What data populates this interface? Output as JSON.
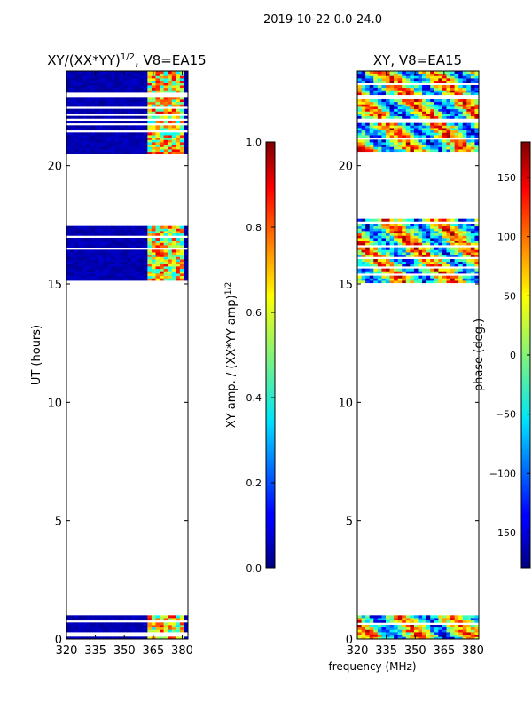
{
  "suptitle": "2019-10-22 0.0-24.0",
  "chart_data": [
    {
      "type": "heatmap",
      "title_prefix": "XY/(XX*YY)",
      "title_sup": "1/2",
      "title_suffix": ", V8=EA15",
      "xlabel": "",
      "ylabel": "UT (hours)",
      "xlim": [
        320,
        383
      ],
      "ylim": [
        0,
        24
      ],
      "xticks": [
        320,
        335,
        350,
        365,
        380
      ],
      "yticks": [
        0,
        5,
        10,
        15,
        20
      ],
      "data_bands_ut": [
        [
          0.0,
          0.95
        ],
        [
          15.05,
          17.75
        ],
        [
          20.5,
          24.0
        ]
      ],
      "colorbar": {
        "label_prefix": "XY amp. / (XX*YY amp)",
        "label_sup": "1/2",
        "range": [
          0.0,
          1.0
        ],
        "ticks": [
          0.0,
          0.2,
          0.4,
          0.6,
          0.8,
          1.0
        ],
        "tick_labels": [
          "0.0",
          "0.2",
          "0.4",
          "0.6",
          "0.8",
          "1.0"
        ]
      }
    },
    {
      "type": "heatmap",
      "title_prefix": "XY, V8=EA15",
      "title_sup": "",
      "title_suffix": "",
      "xlabel": "frequency (MHz)",
      "ylabel": "",
      "xlim": [
        320,
        383
      ],
      "ylim": [
        0,
        24
      ],
      "xticks": [
        320,
        335,
        350,
        365,
        380
      ],
      "yticks": [
        0,
        5,
        10,
        15,
        20
      ],
      "data_bands_ut": [
        [
          0.0,
          0.95
        ],
        [
          15.05,
          17.75
        ],
        [
          20.5,
          24.0
        ]
      ],
      "colorbar": {
        "label_prefix": "phase (deg.)",
        "label_sup": "",
        "range": [
          -180,
          180
        ],
        "ticks": [
          -150,
          -100,
          -50,
          0,
          50,
          100,
          150
        ],
        "tick_labels": [
          "−150",
          "−100",
          "−50",
          "0",
          "50",
          "100",
          "150"
        ]
      }
    }
  ]
}
